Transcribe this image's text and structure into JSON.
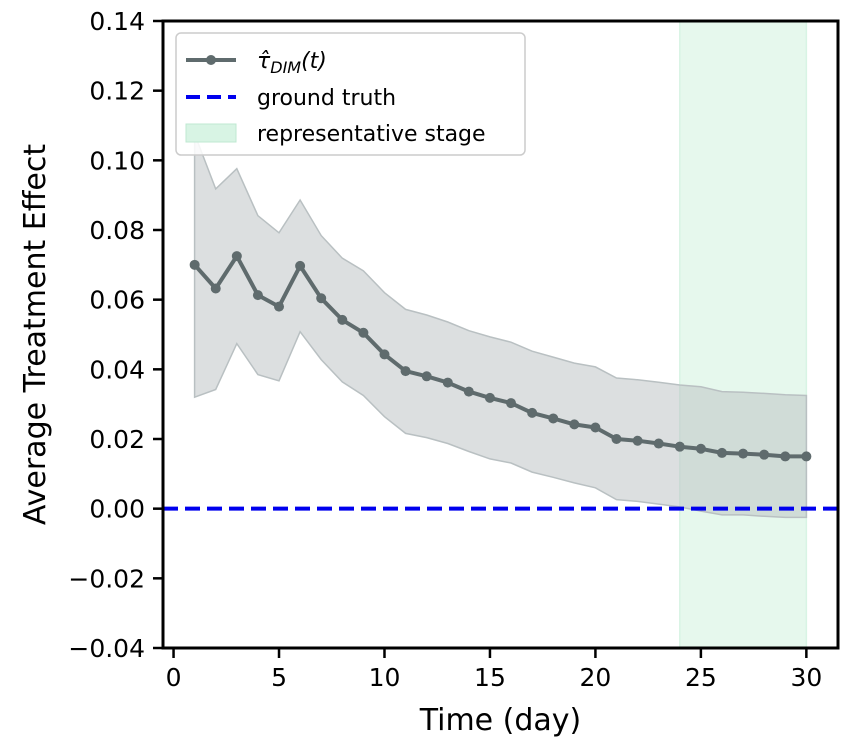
{
  "chart_data": {
    "type": "line",
    "xlabel": "Time (day)",
    "ylabel": "Average Treatment Effect",
    "xlim": [
      -0.5,
      31.5
    ],
    "ylim": [
      -0.04,
      0.14
    ],
    "xticks": [
      0,
      5,
      10,
      15,
      20,
      25,
      30
    ],
    "xtick_labels": [
      "0",
      "5",
      "10",
      "15",
      "20",
      "25",
      "30"
    ],
    "yticks": [
      -0.04,
      -0.02,
      0.0,
      0.02,
      0.04,
      0.06,
      0.08,
      0.1,
      0.12,
      0.14
    ],
    "ytick_labels": [
      "−0.04",
      "−0.02",
      "0.00",
      "0.02",
      "0.04",
      "0.06",
      "0.08",
      "0.10",
      "0.12",
      "0.14"
    ],
    "legend_position": "top-left",
    "series": [
      {
        "name": "τ̂",
        "name_subscript": "DIM",
        "name_suffix": "(t)",
        "color": "#5f6b6d",
        "x": [
          1,
          2,
          3,
          4,
          5,
          6,
          7,
          8,
          9,
          10,
          11,
          12,
          13,
          14,
          15,
          16,
          17,
          18,
          19,
          20,
          21,
          22,
          23,
          24,
          25,
          26,
          27,
          28,
          29,
          30
        ],
        "values": [
          0.07,
          0.0632,
          0.0725,
          0.0613,
          0.058,
          0.0697,
          0.0604,
          0.0542,
          0.0505,
          0.0443,
          0.0395,
          0.038,
          0.0362,
          0.0336,
          0.0318,
          0.0303,
          0.0275,
          0.0259,
          0.0242,
          0.0233,
          0.02,
          0.0195,
          0.0187,
          0.0178,
          0.0172,
          0.016,
          0.0158,
          0.0155,
          0.015,
          0.015
        ],
        "lower": [
          0.032,
          0.0342,
          0.0474,
          0.0385,
          0.0367,
          0.0508,
          0.0428,
          0.0364,
          0.0325,
          0.0264,
          0.0216,
          0.0204,
          0.0187,
          0.0164,
          0.0143,
          0.0131,
          0.0105,
          0.009,
          0.0074,
          0.006,
          0.0026,
          0.0021,
          0.0013,
          0.0005,
          -0.0007,
          -0.0018,
          -0.0018,
          -0.0022,
          -0.0025,
          -0.0025
        ],
        "upper": [
          0.1076,
          0.0918,
          0.0976,
          0.0841,
          0.0792,
          0.0886,
          0.0784,
          0.0719,
          0.0683,
          0.062,
          0.0572,
          0.0556,
          0.0536,
          0.0511,
          0.0493,
          0.0478,
          0.0452,
          0.0435,
          0.0418,
          0.0407,
          0.0375,
          0.037,
          0.0363,
          0.0355,
          0.035,
          0.0336,
          0.0334,
          0.0331,
          0.0327,
          0.0325
        ],
        "band_color": "#b9c0c2"
      },
      {
        "name": "ground truth",
        "type": "hline",
        "value": 0.0,
        "color": "#0000ee",
        "style": "dashed"
      }
    ],
    "shaded_region": {
      "label": "representative stage",
      "x_start": 24,
      "x_end": 30,
      "color": "#d8f4e4"
    }
  }
}
